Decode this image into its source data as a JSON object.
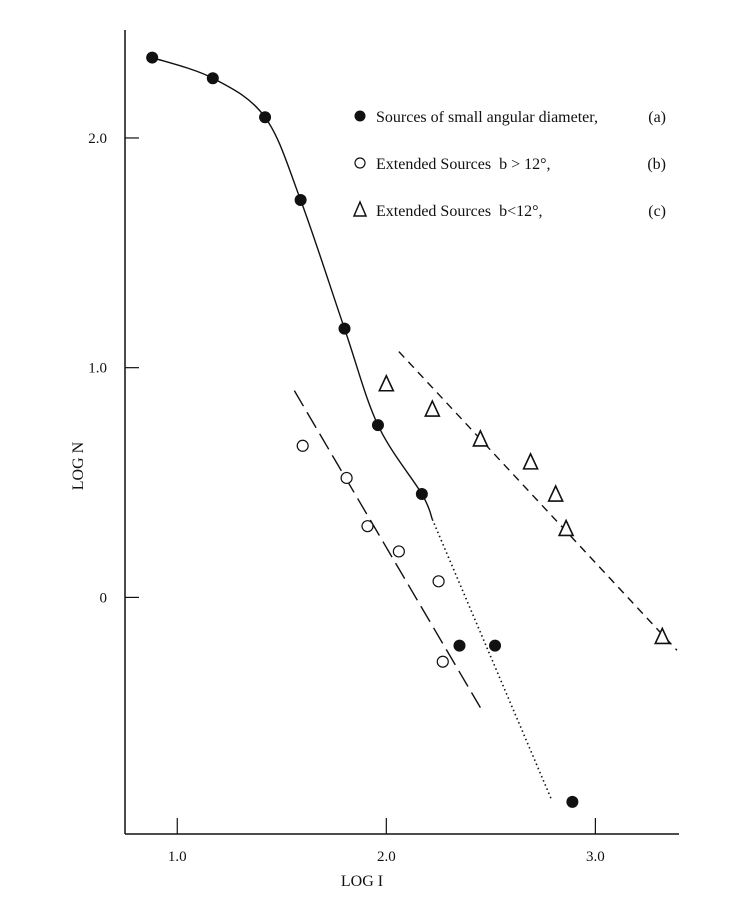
{
  "chart_data": {
    "type": "scatter",
    "title": "",
    "xlabel": "LOG I",
    "ylabel": "LOG N",
    "xlim": [
      0.75,
      3.4
    ],
    "ylim": [
      -1.03,
      2.47
    ],
    "grid": false,
    "x_ticks": [
      {
        "value": 1.0,
        "label": "1.0"
      },
      {
        "value": 2.0,
        "label": "2.0"
      },
      {
        "value": 3.0,
        "label": "3.0"
      }
    ],
    "y_ticks": [
      {
        "value": 2.0,
        "label": "2.0"
      },
      {
        "value": 1.0,
        "label": "1.0"
      },
      {
        "value": 0,
        "label": "0"
      }
    ],
    "legend_placement": "top-right",
    "series": [
      {
        "name": "Sources of small angular diameter, (a)",
        "label": "Sources of small angular diameter,",
        "tag": "(a)",
        "marker": "filled-circle",
        "x": [
          0.88,
          1.17,
          1.42,
          1.59,
          1.8,
          1.96,
          2.17,
          2.35,
          2.52,
          2.89
        ],
        "y": [
          2.35,
          2.26,
          2.09,
          1.73,
          1.17,
          0.75,
          0.45,
          -0.21,
          -0.21,
          -0.89
        ]
      },
      {
        "name": "Extended Sources b > 12°, (b)",
        "label": "Extended Sources  b > 12°,",
        "tag": "(b)",
        "marker": "open-circle",
        "x": [
          1.6,
          1.81,
          1.91,
          2.06,
          2.25,
          2.27
        ],
        "y": [
          0.66,
          0.52,
          0.31,
          0.2,
          0.07,
          -0.28
        ]
      },
      {
        "name": "Extended Sources b<12°, (c)",
        "label": "Extended Sources  b<12°,",
        "tag": "(c)",
        "marker": "open-triangle",
        "x": [
          2.0,
          2.22,
          2.45,
          2.69,
          2.81,
          2.86,
          3.32
        ],
        "y": [
          0.93,
          0.82,
          0.69,
          0.59,
          0.45,
          0.3,
          -0.17
        ]
      }
    ],
    "fit_lines": [
      {
        "name": "fit-a-curve",
        "style": "solid",
        "x": [
          0.88,
          1.17,
          1.42,
          1.59,
          1.8,
          1.96,
          2.17,
          2.22
        ],
        "y": [
          2.35,
          2.26,
          2.09,
          1.73,
          1.17,
          0.75,
          0.45,
          0.34
        ]
      },
      {
        "name": "fit-a-dotted",
        "style": "dotted",
        "x": [
          2.22,
          2.79
        ],
        "y": [
          0.34,
          -0.88
        ]
      },
      {
        "name": "fit-b",
        "style": "long-dash",
        "x": [
          1.56,
          2.45
        ],
        "y": [
          0.9,
          -0.48
        ]
      },
      {
        "name": "fit-c",
        "style": "dash",
        "x": [
          2.06,
          3.39
        ],
        "y": [
          1.07,
          -0.23
        ]
      }
    ]
  }
}
